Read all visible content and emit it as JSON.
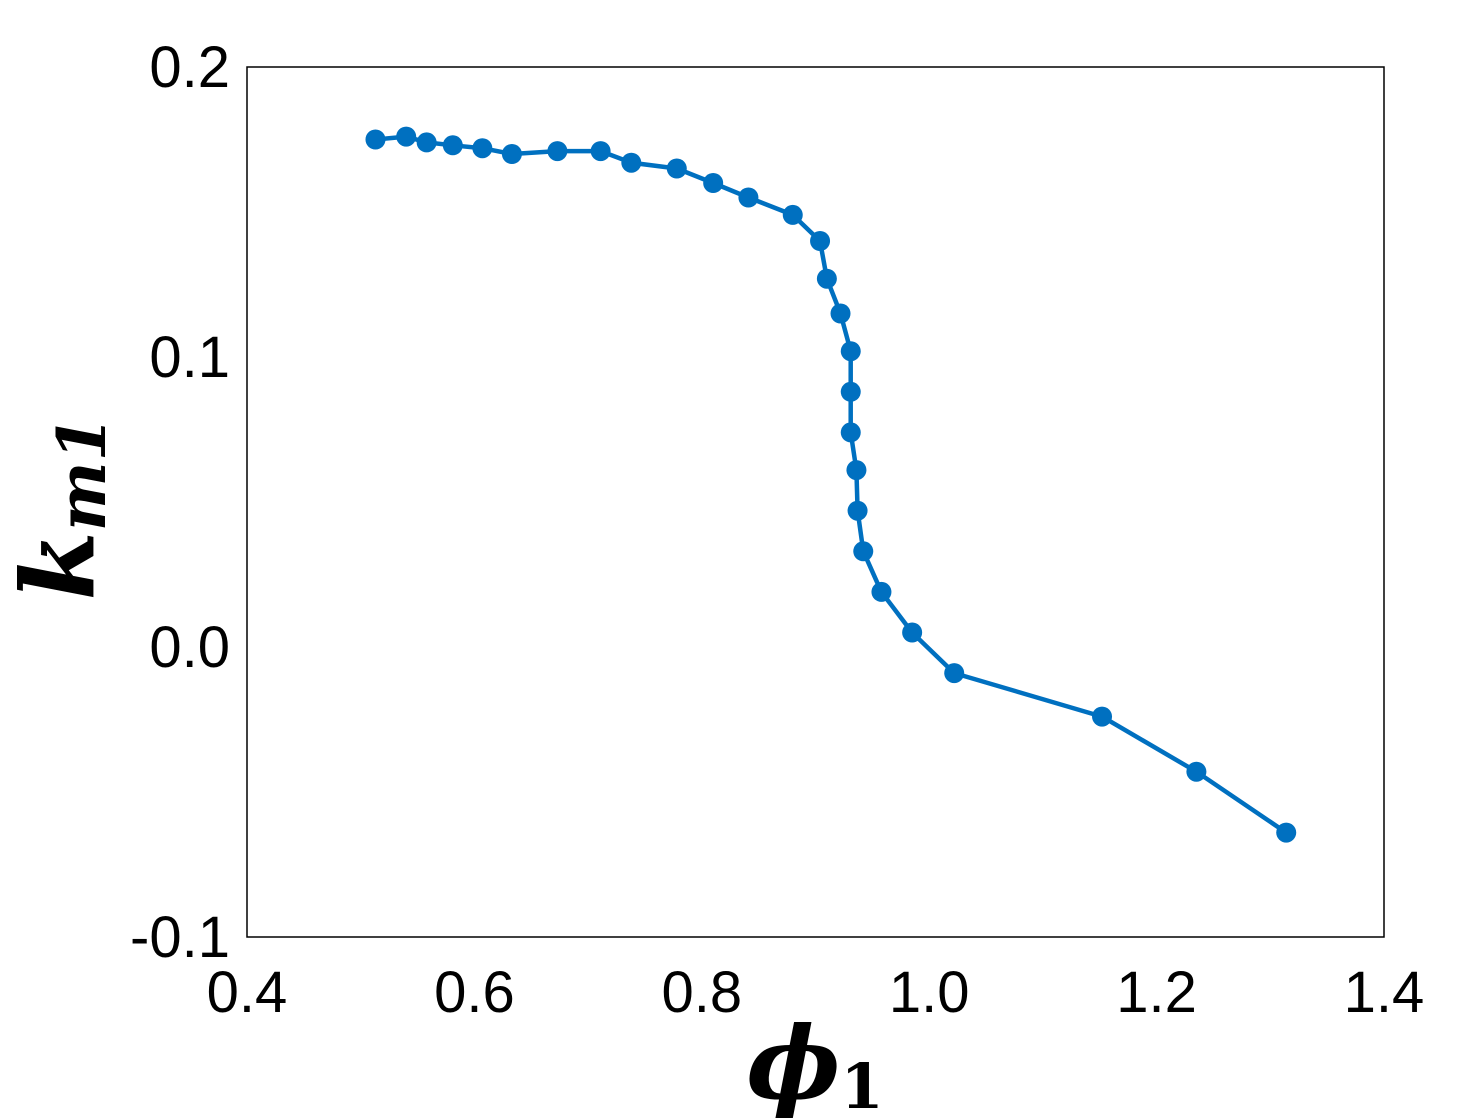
{
  "chart_data": {
    "type": "line",
    "xlabel": "ϕ",
    "xlabel_subscript": "1",
    "ylabel": "k",
    "ylabel_subscript": "m1",
    "xlim": [
      0.4,
      1.4
    ],
    "ylim": [
      -0.1,
      0.2
    ],
    "xticks": [
      0.4,
      0.6,
      0.8,
      1.0,
      1.2,
      1.4
    ],
    "xtick_labels": [
      "0.4",
      "0.6",
      "0.8",
      "1.0",
      "1.2",
      "1.4"
    ],
    "yticks": [
      -0.1,
      0.0,
      0.1,
      0.2
    ],
    "ytick_labels": [
      "-0.1",
      "0.0",
      "0.1",
      "0.2"
    ],
    "grid": false,
    "legend": false,
    "series": [
      {
        "color": "#0070c0",
        "marker": "circle",
        "x": [
          0.513,
          0.54,
          0.558,
          0.581,
          0.607,
          0.633,
          0.673,
          0.711,
          0.738,
          0.778,
          0.81,
          0.841,
          0.88,
          0.904,
          0.91,
          0.922,
          0.931,
          0.931,
          0.931,
          0.936,
          0.937,
          0.942,
          0.958,
          0.985,
          1.022,
          1.152,
          1.235,
          1.314
        ],
        "y": [
          0.175,
          0.176,
          0.174,
          0.173,
          0.172,
          0.17,
          0.171,
          0.171,
          0.167,
          0.165,
          0.16,
          0.155,
          0.149,
          0.14,
          0.127,
          0.115,
          0.102,
          0.088,
          0.074,
          0.061,
          0.047,
          0.033,
          0.019,
          0.005,
          -0.009,
          -0.024,
          -0.043,
          -0.064
        ]
      }
    ]
  }
}
